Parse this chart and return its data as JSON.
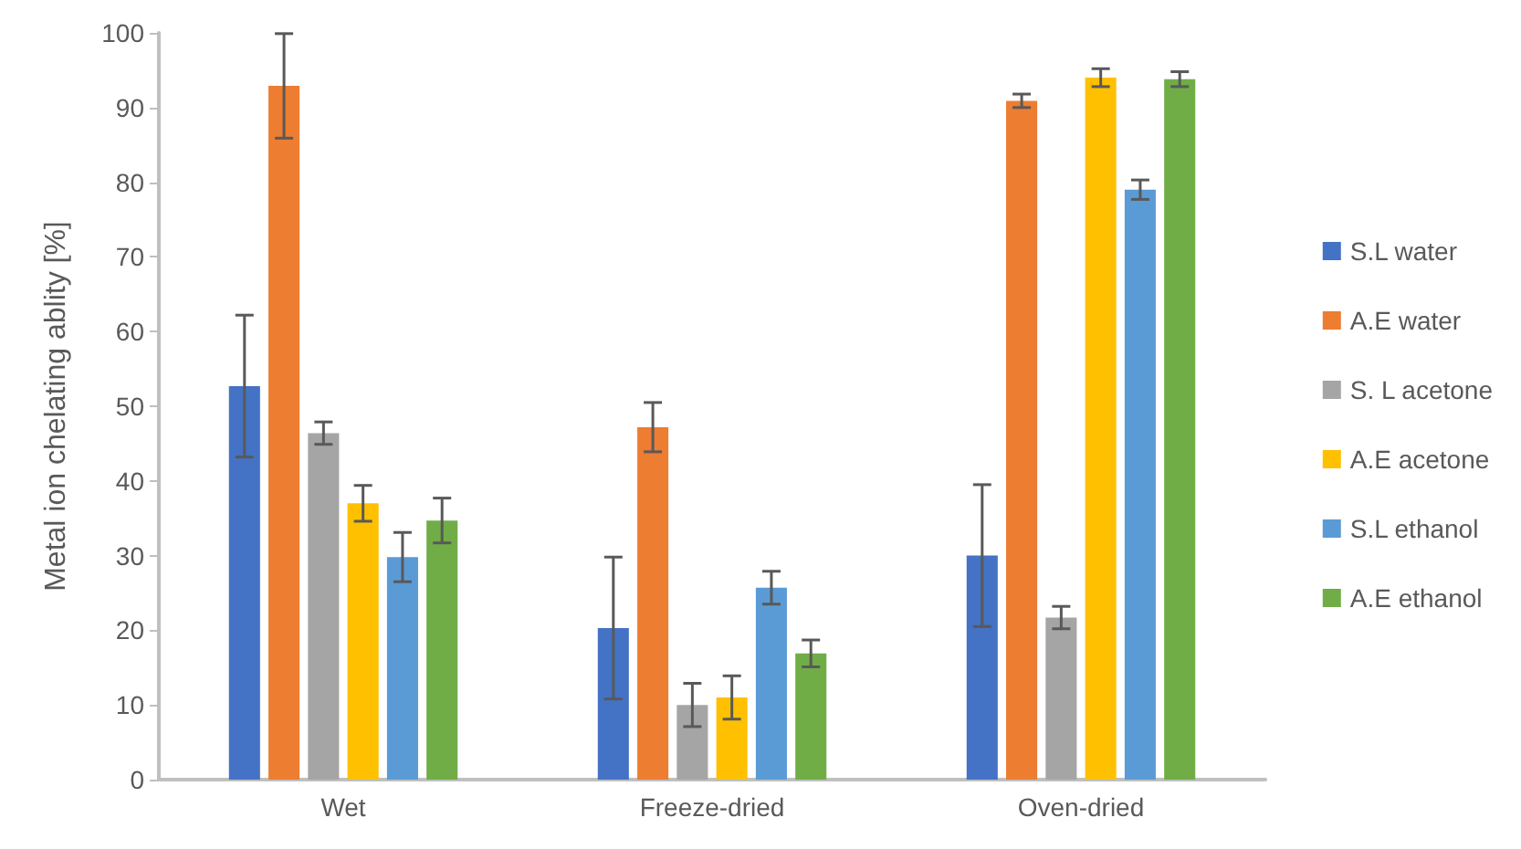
{
  "chart_data": {
    "type": "bar",
    "ylabel": "Metal ion chelating ablity [%]",
    "categories": [
      "Wet",
      "Freeze-dried",
      "Oven-dried"
    ],
    "ylim": [
      0,
      100
    ],
    "yticks": [
      0,
      10,
      20,
      30,
      40,
      50,
      60,
      70,
      80,
      90,
      100
    ],
    "grid": false,
    "legend": "right",
    "series": [
      {
        "name": "S.L water",
        "color": "#4472c4",
        "values": [
          52.7,
          20.3,
          30
        ],
        "errors": [
          9.5,
          9.5,
          9.5
        ]
      },
      {
        "name": "A.E water",
        "color": "#ed7d31",
        "values": [
          92.9,
          47.2,
          90.9
        ],
        "errors": [
          7,
          3.3,
          0.9
        ]
      },
      {
        "name": "S. L acetone",
        "color": "#a5a5a5",
        "values": [
          46.4,
          10,
          21.7
        ],
        "errors": [
          1.5,
          2.9,
          1.5
        ]
      },
      {
        "name": "A.E acetone",
        "color": "#ffc000",
        "values": [
          37,
          11,
          94
        ],
        "errors": [
          2.4,
          2.9,
          1.2
        ]
      },
      {
        "name": "S.L ethanol",
        "color": "#5b9bd5",
        "values": [
          29.8,
          25.7,
          79
        ],
        "errors": [
          3.3,
          2.2,
          1.3
        ]
      },
      {
        "name": "A.E ethanol",
        "color": "#70ad47",
        "values": [
          34.7,
          16.9,
          93.8
        ],
        "errors": [
          3,
          1.8,
          1
        ]
      }
    ]
  }
}
